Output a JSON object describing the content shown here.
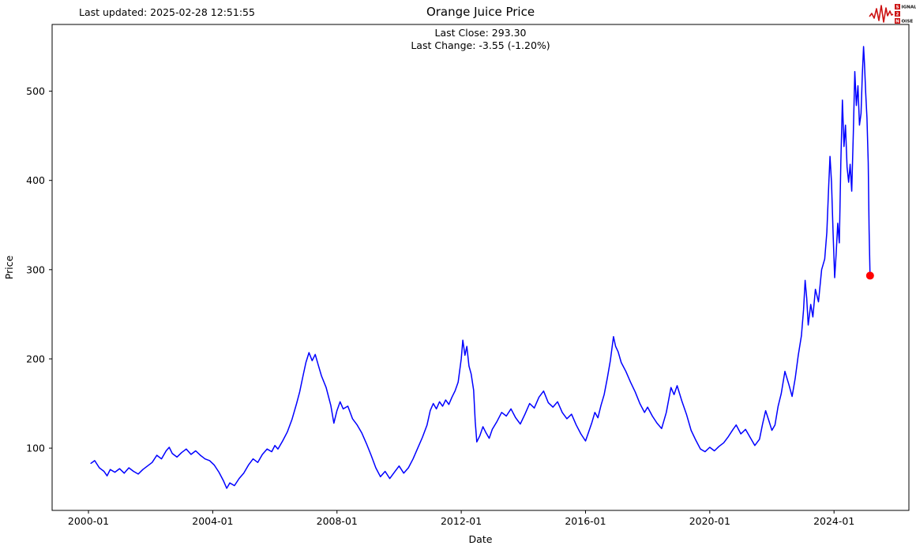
{
  "header": {
    "last_updated": "Last updated: 2025-02-28 12:51:55",
    "title": "Orange Juice Price",
    "last_close_label": "Last Close: 293.30",
    "last_change_label": "Last Change: -3.55 (-1.20%)"
  },
  "logo": {
    "word1": "SIGNAL",
    "word2": "2",
    "word3": "NOISE",
    "accent_color": "#cc1111"
  },
  "chart_data": {
    "type": "line",
    "title": "Orange Juice Price",
    "xlabel": "Date",
    "ylabel": "Price",
    "legend": null,
    "grid": false,
    "x_tick_labels": [
      "2000-01",
      "2004-01",
      "2008-01",
      "2012-01",
      "2016-01",
      "2020-01",
      "2024-01"
    ],
    "x_tick_values": [
      2000.0,
      2004.0,
      2008.0,
      2012.0,
      2016.0,
      2020.0,
      2024.0
    ],
    "y_tick_labels": [
      "100",
      "200",
      "300",
      "400",
      "500"
    ],
    "y_tick_values": [
      100,
      200,
      300,
      400,
      500
    ],
    "xlim": [
      1998.83,
      2026.41
    ],
    "ylim": [
      30.25,
      574.75
    ],
    "line_color": "#0000ff",
    "last_point_color": "#ff0000",
    "last_close": 293.3,
    "last_change": -3.55,
    "last_change_pct": -1.2,
    "series": [
      {
        "name": "Orange Juice Price",
        "x": [
          2000.08,
          2000.2,
          2000.35,
          2000.5,
          2000.6,
          2000.7,
          2000.85,
          2001.0,
          2001.15,
          2001.3,
          2001.45,
          2001.6,
          2001.75,
          2001.9,
          2002.05,
          2002.2,
          2002.35,
          2002.5,
          2002.6,
          2002.7,
          2002.85,
          2003.0,
          2003.15,
          2003.3,
          2003.45,
          2003.6,
          2003.75,
          2003.9,
          2004.05,
          2004.2,
          2004.35,
          2004.45,
          2004.55,
          2004.7,
          2004.85,
          2005.0,
          2005.15,
          2005.3,
          2005.45,
          2005.6,
          2005.75,
          2005.9,
          2006.0,
          2006.1,
          2006.25,
          2006.4,
          2006.55,
          2006.7,
          2006.8,
          2006.9,
          2007.0,
          2007.1,
          2007.2,
          2007.3,
          2007.4,
          2007.5,
          2007.65,
          2007.8,
          2007.9,
          2008.0,
          2008.1,
          2008.2,
          2008.35,
          2008.5,
          2008.65,
          2008.8,
          2008.95,
          2009.1,
          2009.25,
          2009.4,
          2009.55,
          2009.7,
          2009.85,
          2010.0,
          2010.15,
          2010.3,
          2010.45,
          2010.6,
          2010.75,
          2010.9,
          2011.0,
          2011.1,
          2011.2,
          2011.3,
          2011.4,
          2011.5,
          2011.6,
          2011.7,
          2011.8,
          2011.9,
          2012.0,
          2012.05,
          2012.12,
          2012.18,
          2012.25,
          2012.32,
          2012.4,
          2012.45,
          2012.5,
          2012.6,
          2012.7,
          2012.8,
          2012.9,
          2013.0,
          2013.15,
          2013.3,
          2013.45,
          2013.6,
          2013.75,
          2013.9,
          2014.05,
          2014.2,
          2014.35,
          2014.5,
          2014.65,
          2014.8,
          2014.95,
          2015.1,
          2015.25,
          2015.4,
          2015.55,
          2015.7,
          2015.85,
          2016.0,
          2016.1,
          2016.2,
          2016.3,
          2016.4,
          2016.5,
          2016.6,
          2016.7,
          2016.8,
          2016.9,
          2016.97,
          2017.05,
          2017.15,
          2017.3,
          2017.45,
          2017.6,
          2017.75,
          2017.9,
          2018.0,
          2018.15,
          2018.3,
          2018.45,
          2018.6,
          2018.75,
          2018.85,
          2018.95,
          2019.1,
          2019.25,
          2019.4,
          2019.55,
          2019.7,
          2019.85,
          2020.0,
          2020.15,
          2020.3,
          2020.45,
          2020.6,
          2020.75,
          2020.85,
          2021.0,
          2021.15,
          2021.3,
          2021.45,
          2021.6,
          2021.7,
          2021.8,
          2021.9,
          2022.0,
          2022.1,
          2022.2,
          2022.3,
          2022.42,
          2022.55,
          2022.65,
          2022.75,
          2022.85,
          2022.95,
          2023.02,
          2023.07,
          2023.12,
          2023.17,
          2023.25,
          2023.32,
          2023.4,
          2023.5,
          2023.6,
          2023.7,
          2023.77,
          2023.83,
          2023.87,
          2023.92,
          2023.97,
          2024.02,
          2024.07,
          2024.12,
          2024.17,
          2024.22,
          2024.27,
          2024.32,
          2024.37,
          2024.42,
          2024.47,
          2024.52,
          2024.57,
          2024.62,
          2024.67,
          2024.72,
          2024.77,
          2024.82,
          2024.87,
          2024.91,
          2024.95,
          2024.98,
          2025.02,
          2025.06,
          2025.1,
          2025.13,
          2025.16
        ],
        "y": [
          83,
          86,
          78,
          74,
          69,
          76,
          73,
          77,
          72,
          78,
          74,
          71,
          76,
          80,
          84,
          92,
          88,
          97,
          101,
          94,
          90,
          95,
          99,
          93,
          97,
          92,
          88,
          86,
          81,
          73,
          63,
          55,
          61,
          58,
          66,
          72,
          81,
          88,
          84,
          93,
          99,
          96,
          103,
          99,
          108,
          118,
          132,
          150,
          163,
          180,
          196,
          207,
          198,
          205,
          193,
          181,
          168,
          148,
          128,
          142,
          152,
          144,
          147,
          133,
          126,
          117,
          105,
          92,
          78,
          68,
          74,
          66,
          73,
          80,
          72,
          78,
          88,
          100,
          112,
          126,
          142,
          150,
          144,
          152,
          147,
          154,
          149,
          157,
          164,
          174,
          200,
          221,
          204,
          214,
          192,
          183,
          165,
          130,
          107,
          114,
          124,
          117,
          111,
          121,
          130,
          140,
          136,
          144,
          134,
          127,
          138,
          150,
          145,
          157,
          164,
          151,
          146,
          152,
          140,
          133,
          138,
          126,
          116,
          108,
          118,
          128,
          140,
          134,
          148,
          160,
          178,
          198,
          225,
          214,
          208,
          196,
          186,
          174,
          163,
          150,
          140,
          146,
          136,
          128,
          122,
          140,
          168,
          160,
          170,
          153,
          138,
          120,
          109,
          99,
          96,
          101,
          97,
          102,
          106,
          113,
          121,
          126,
          116,
          121,
          112,
          103,
          110,
          127,
          142,
          131,
          120,
          126,
          147,
          161,
          186,
          171,
          158,
          178,
          204,
          226,
          255,
          288,
          268,
          238,
          261,
          247,
          278,
          264,
          300,
          312,
          342,
          395,
          427,
          398,
          341,
          291,
          318,
          352,
          330,
          420,
          490,
          438,
          462,
          415,
          398,
          418,
          388,
          452,
          522,
          484,
          506,
          462,
          475,
          518,
          550,
          532,
          498,
          470,
          420,
          345,
          293.3
        ]
      }
    ]
  }
}
